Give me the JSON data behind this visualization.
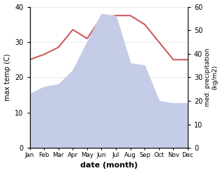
{
  "months": [
    "Jan",
    "Feb",
    "Mar",
    "Apr",
    "May",
    "Jun",
    "Jul",
    "Aug",
    "Sep",
    "Oct",
    "Nov",
    "Dec"
  ],
  "month_x": [
    0,
    1,
    2,
    3,
    4,
    5,
    6,
    7,
    8,
    9,
    10,
    11
  ],
  "temperature": [
    25.0,
    26.5,
    28.5,
    33.5,
    31.0,
    37.0,
    37.5,
    37.5,
    35.0,
    30.0,
    25.0,
    25.0
  ],
  "precipitation": [
    23.0,
    26.0,
    27.0,
    33.0,
    45.0,
    57.0,
    56.0,
    36.0,
    35.0,
    20.0,
    19.0,
    19.0
  ],
  "temp_color": "#cd5b5b",
  "precip_fill_color": "#c5cce8",
  "temp_ylim": [
    0,
    40
  ],
  "precip_ylim": [
    0,
    60
  ],
  "temp_yticks": [
    0,
    10,
    20,
    30,
    40
  ],
  "precip_yticks": [
    0,
    10,
    20,
    30,
    40,
    50,
    60
  ],
  "ylabel_left": "max temp (C)",
  "ylabel_right": "med. precipitation\n(kg/m2)",
  "xlabel": "date (month)",
  "background_color": "#ffffff",
  "linewidth": 1.5
}
